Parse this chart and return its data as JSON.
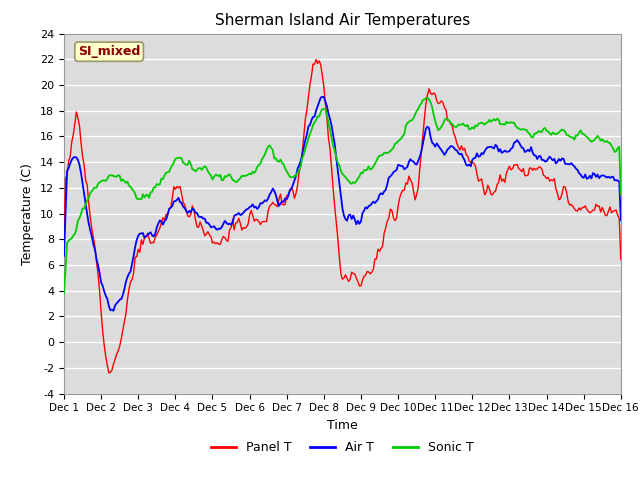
{
  "title": "Sherman Island Air Temperatures",
  "xlabel": "Time",
  "ylabel": "Temperature (C)",
  "ylim": [
    -4,
    24
  ],
  "yticks": [
    -4,
    -2,
    0,
    2,
    4,
    6,
    8,
    10,
    12,
    14,
    16,
    18,
    20,
    22,
    24
  ],
  "xlim": [
    0,
    360
  ],
  "xtick_labels": [
    "Dec 1",
    "Dec 2",
    "Dec 3",
    "Dec 4",
    "Dec 5",
    "Dec 6",
    "Dec 7",
    "Dec 8",
    "Dec 9",
    "Dec 10",
    "Dec 11",
    "Dec 12",
    "Dec 13",
    "Dec 14",
    "Dec 15",
    "Dec 16"
  ],
  "xtick_positions": [
    0,
    24,
    48,
    72,
    96,
    120,
    144,
    168,
    192,
    216,
    240,
    264,
    288,
    312,
    336,
    360
  ],
  "bg_color": "#dcdcdc",
  "fig_color": "#ffffff",
  "panel_color": "#ff0000",
  "air_color": "#0000ff",
  "sonic_color": "#00cc00",
  "label_box_text": "SI_mixed",
  "label_box_bg": "#ffffcc",
  "label_box_border": "#999966",
  "label_box_text_color": "#880000",
  "legend_labels": [
    "Panel T",
    "Air T",
    "Sonic T"
  ],
  "panel_keypoints_x": [
    0,
    8,
    18,
    25,
    30,
    36,
    48,
    60,
    72,
    84,
    96,
    108,
    120,
    132,
    140,
    144,
    150,
    154,
    158,
    162,
    168,
    174,
    180,
    192,
    200,
    216,
    222,
    228,
    234,
    240,
    250,
    264,
    276,
    288,
    300,
    312,
    324,
    336,
    348,
    360
  ],
  "panel_keypoints_y": [
    12,
    18,
    9,
    2,
    -2.5,
    0,
    7.5,
    8,
    12,
    10,
    8,
    8.5,
    9.5,
    10,
    11,
    11,
    12,
    15,
    19,
    23,
    20.5,
    12,
    5,
    5.3,
    6,
    11,
    13,
    11.5,
    18,
    20,
    17,
    14,
    11,
    14,
    13,
    13,
    11,
    10,
    10,
    10
  ],
  "air_keypoints_x": [
    0,
    8,
    18,
    25,
    30,
    36,
    48,
    60,
    72,
    84,
    96,
    108,
    120,
    132,
    140,
    144,
    150,
    156,
    162,
    168,
    174,
    180,
    192,
    200,
    216,
    228,
    234,
    240,
    250,
    264,
    276,
    288,
    300,
    312,
    324,
    336,
    348,
    360
  ],
  "air_keypoints_y": [
    13,
    15,
    8,
    4,
    2.5,
    3,
    8,
    9,
    11,
    10,
    9,
    9.5,
    10.5,
    11,
    11,
    11,
    13,
    16,
    18,
    19,
    16,
    9.5,
    10,
    11,
    13.5,
    14,
    17,
    15.5,
    15,
    14,
    15,
    15,
    15,
    14,
    14,
    13,
    13,
    12
  ],
  "sonic_keypoints_x": [
    0,
    8,
    18,
    25,
    30,
    36,
    48,
    60,
    72,
    84,
    96,
    108,
    120,
    132,
    140,
    144,
    150,
    156,
    162,
    168,
    174,
    180,
    192,
    200,
    216,
    222,
    228,
    234,
    240,
    250,
    264,
    276,
    288,
    300,
    312,
    324,
    336,
    348,
    360
  ],
  "sonic_keypoints_y": [
    7,
    9,
    12,
    13,
    13,
    13,
    11,
    12,
    14,
    13.5,
    13,
    12.5,
    13,
    15,
    14,
    13,
    13,
    15,
    17,
    18.5,
    15,
    12.5,
    13,
    14,
    15.5,
    17,
    18,
    19.5,
    17,
    17,
    17,
    17,
    17,
    16.5,
    16.5,
    16,
    16,
    15.5,
    15
  ]
}
